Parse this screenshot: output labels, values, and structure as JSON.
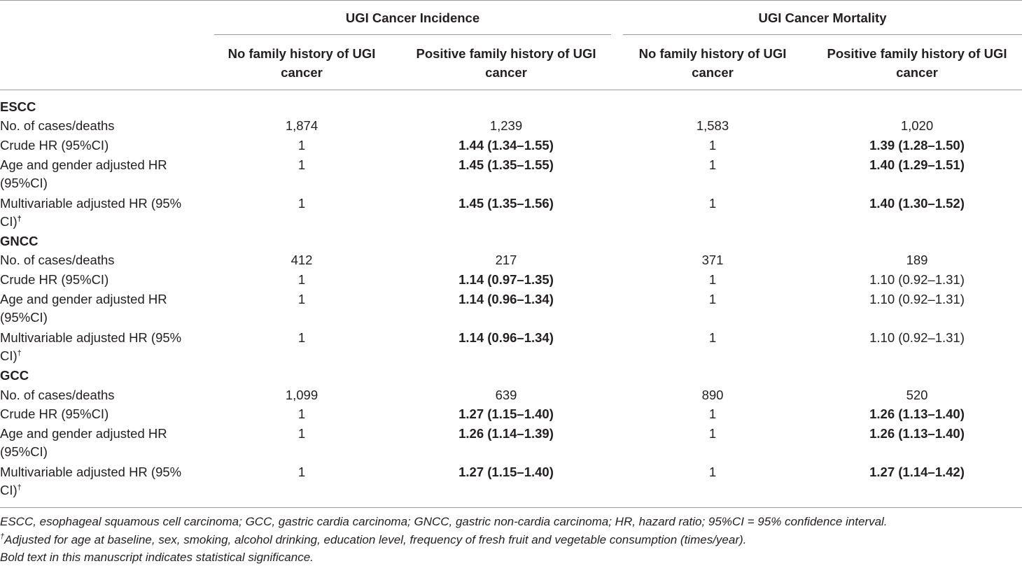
{
  "header": {
    "group_incidence": "UGI Cancer Incidence",
    "group_mortality": "UGI Cancer Mortality",
    "col_no_hist_line1": "No family history of UGI",
    "col_no_hist_line2": "cancer",
    "col_pos_hist_line1": "Positive family history of UGI",
    "col_pos_hist_line2": "cancer"
  },
  "rows": {
    "escc": {
      "label": "ESCC",
      "cases_label": "No. of cases/deaths",
      "cases": [
        "1,874",
        "1,239",
        "1,583",
        "1,020"
      ],
      "crude_label": "Crude HR (95%CI)",
      "crude": [
        "1",
        "1.44 (1.34–1.55)",
        "1",
        "1.39 (1.28–1.50)"
      ],
      "age_label_line1": "Age and gender adjusted HR",
      "age_label_line2": "(95%CI)",
      "age": [
        "1",
        "1.45 (1.35–1.55)",
        "1",
        "1.40 (1.29–1.51)"
      ],
      "multi_label_line1": "Multivariable adjusted HR (95%",
      "multi_label_line2": "CI)",
      "multi_sup": "†",
      "multi": [
        "1",
        "1.45 (1.35–1.56)",
        "1",
        "1.40 (1.30–1.52)"
      ]
    },
    "gncc": {
      "label": "GNCC",
      "cases_label": "No. of cases/deaths",
      "cases": [
        "412",
        "217",
        "371",
        "189"
      ],
      "crude_label": "Crude HR (95%CI)",
      "crude": [
        "1",
        "1.14 (0.97–1.35)",
        "1",
        "1.10 (0.92–1.31)"
      ],
      "age_label_line1": "Age and gender adjusted HR",
      "age_label_line2": "(95%CI)",
      "age": [
        "1",
        "1.14 (0.96–1.34)",
        "1",
        "1.10 (0.92–1.31)"
      ],
      "multi_label_line1": "Multivariable adjusted HR (95%",
      "multi_label_line2": "CI)",
      "multi_sup": "†",
      "multi": [
        "1",
        "1.14 (0.96–1.34)",
        "1",
        "1.10 (0.92–1.31)"
      ]
    },
    "gcc": {
      "label": "GCC",
      "cases_label": "No. of cases/deaths",
      "cases": [
        "1,099",
        "639",
        "890",
        "520"
      ],
      "crude_label": "Crude HR (95%CI)",
      "crude": [
        "1",
        "1.27 (1.15–1.40)",
        "1",
        "1.26 (1.13–1.40)"
      ],
      "age_label_line1": "Age and gender adjusted HR",
      "age_label_line2": "(95%CI)",
      "age": [
        "1",
        "1.26 (1.14–1.39)",
        "1",
        "1.26 (1.13–1.40)"
      ],
      "multi_label_line1": "Multivariable adjusted HR (95%",
      "multi_label_line2": "CI)",
      "multi_sup": "†",
      "multi": [
        "1",
        "1.27 (1.15–1.40)",
        "1",
        "1.27 (1.14–1.42)"
      ]
    }
  },
  "footnotes": {
    "abbrev": "ESCC, esophageal squamous cell carcinoma; GCC, gastric cardia carcinoma; GNCC, gastric non-cardia carcinoma; HR, hazard ratio; 95%CI = 95% confidence interval.",
    "dagger_mark": "†",
    "dagger_text": "Adjusted for age at baseline, sex, smoking, alcohol drinking, education level, frequency of fresh fruit and vegetable consumption (times/year).",
    "bold_note": "Bold text in this manuscript indicates statistical significance."
  }
}
